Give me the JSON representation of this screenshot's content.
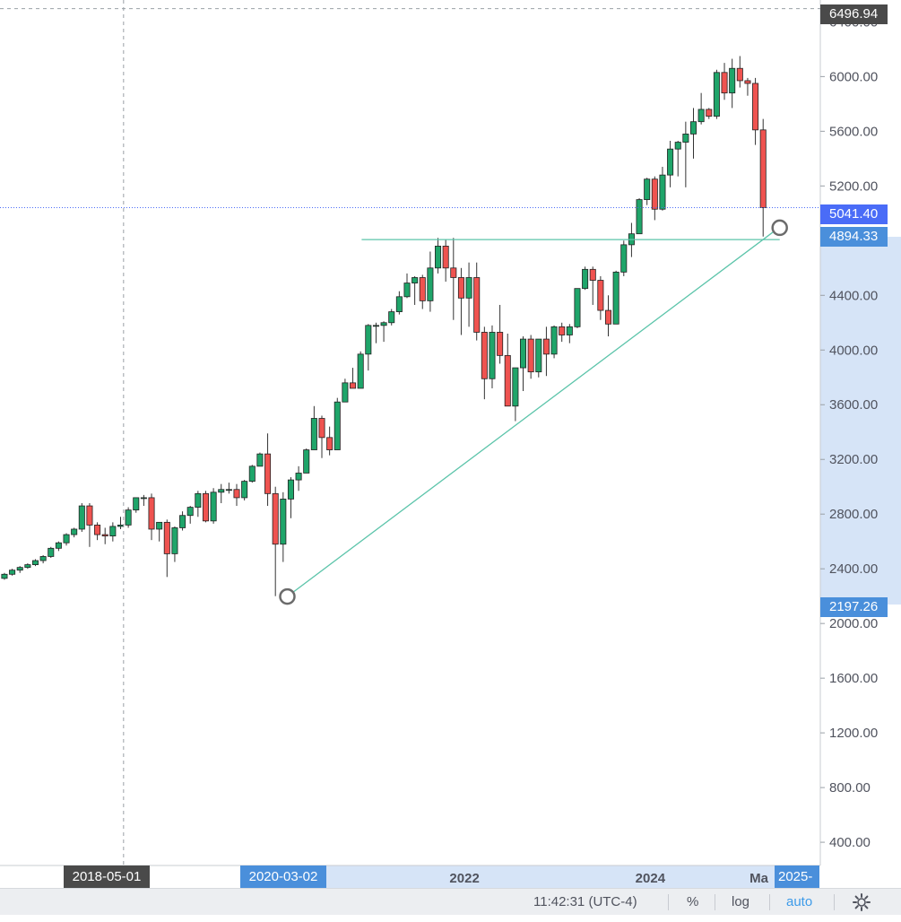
{
  "chart_data": {
    "type": "candlestick",
    "interval": "monthly",
    "y_axis": {
      "ticks": [
        "6400.00",
        "6000.00",
        "5600.00",
        "5200.00",
        "4800.00",
        "4400.00",
        "4000.00",
        "3600.00",
        "3200.00",
        "2800.00",
        "2400.00",
        "2000.00",
        "1600.00",
        "1200.00",
        "800.00",
        "400.00"
      ],
      "tick_values": [
        6400,
        6000,
        5600,
        5200,
        4800,
        4400,
        4000,
        3600,
        3200,
        2800,
        2400,
        2000,
        1600,
        1200,
        800,
        400
      ],
      "range": [
        230,
        6560
      ]
    },
    "x_axis": {
      "labels": [
        {
          "text": "2022",
          "year": 2022.0
        },
        {
          "text": "2024",
          "year": 2024.0
        },
        {
          "text": "Ma",
          "year": 2025.17
        }
      ],
      "range_years": [
        2017.0,
        2025.83
      ]
    },
    "price_labels": {
      "crosshair_price": "6496.94",
      "current_price": "5041.40",
      "drawing_end_price": "4894.33",
      "drawing_start_price": "2197.26"
    },
    "date_labels": {
      "crosshair_date": "2018-05-01",
      "drawing_start_date": "2020-03-02",
      "drawing_end_date": "2025-"
    },
    "crosshair": {
      "year": 2018.33,
      "price": 6496.94
    },
    "current_price_value": 5041.4,
    "drawings": {
      "trendline": {
        "start": {
          "year": 2020.17,
          "price": 2197.26
        },
        "end": {
          "year": 2025.47,
          "price": 4894.33
        }
      },
      "horizontal_segment": {
        "start_year": 2020.97,
        "end_year": 2025.47,
        "price": 4808
      }
    },
    "start_year": 2017.0,
    "candles": [
      [
        2300,
        2340,
        2280,
        2330
      ],
      [
        2330,
        2370,
        2320,
        2360
      ],
      [
        2360,
        2400,
        2350,
        2390
      ],
      [
        2390,
        2420,
        2370,
        2410
      ],
      [
        2410,
        2440,
        2400,
        2430
      ],
      [
        2430,
        2470,
        2420,
        2460
      ],
      [
        2460,
        2500,
        2440,
        2490
      ],
      [
        2490,
        2560,
        2480,
        2550
      ],
      [
        2550,
        2600,
        2530,
        2590
      ],
      [
        2590,
        2660,
        2570,
        2650
      ],
      [
        2650,
        2700,
        2630,
        2690
      ],
      [
        2690,
        2880,
        2670,
        2860
      ],
      [
        2860,
        2880,
        2560,
        2720
      ],
      [
        2720,
        2740,
        2610,
        2650
      ],
      [
        2650,
        2700,
        2580,
        2640
      ],
      [
        2640,
        2740,
        2600,
        2710
      ],
      [
        2710,
        2780,
        2690,
        2720
      ],
      [
        2720,
        2850,
        2700,
        2830
      ],
      [
        2830,
        2920,
        2810,
        2920
      ],
      [
        2920,
        2940,
        2860,
        2920
      ],
      [
        2920,
        2950,
        2610,
        2690
      ],
      [
        2690,
        2740,
        2600,
        2740
      ],
      [
        2740,
        2760,
        2340,
        2510
      ],
      [
        2510,
        2710,
        2450,
        2700
      ],
      [
        2700,
        2820,
        2680,
        2790
      ],
      [
        2790,
        2860,
        2730,
        2850
      ],
      [
        2850,
        2970,
        2780,
        2950
      ],
      [
        2950,
        2970,
        2740,
        2750
      ],
      [
        2750,
        2990,
        2730,
        2960
      ],
      [
        2960,
        3020,
        2880,
        2980
      ],
      [
        2980,
        3030,
        2950,
        2980
      ],
      [
        2980,
        3020,
        2860,
        2920
      ],
      [
        2920,
        3050,
        2900,
        3040
      ],
      [
        3040,
        3160,
        3030,
        3150
      ],
      [
        3150,
        3250,
        3150,
        3240
      ],
      [
        3240,
        3390,
        2860,
        2950
      ],
      [
        2950,
        3000,
        2200,
        2580
      ],
      [
        2580,
        2960,
        2450,
        2910
      ],
      [
        2910,
        3070,
        2770,
        3050
      ],
      [
        3050,
        3150,
        2970,
        3100
      ],
      [
        3100,
        3280,
        3100,
        3270
      ],
      [
        3270,
        3590,
        3270,
        3500
      ],
      [
        3500,
        3520,
        3210,
        3360
      ],
      [
        3360,
        3440,
        3230,
        3270
      ],
      [
        3270,
        3650,
        3270,
        3620
      ],
      [
        3620,
        3790,
        3620,
        3760
      ],
      [
        3760,
        3870,
        3720,
        3720
      ],
      [
        3720,
        3990,
        3720,
        3970
      ],
      [
        3970,
        4190,
        3850,
        4180
      ],
      [
        4180,
        4200,
        4050,
        4180
      ],
      [
        4180,
        4210,
        4060,
        4200
      ],
      [
        4200,
        4300,
        4180,
        4280
      ],
      [
        4280,
        4430,
        4260,
        4390
      ],
      [
        4390,
        4560,
        4380,
        4490
      ],
      [
        4490,
        4540,
        4330,
        4530
      ],
      [
        4530,
        4550,
        4300,
        4360
      ],
      [
        4360,
        4720,
        4280,
        4600
      ],
      [
        4600,
        4820,
        4560,
        4760
      ],
      [
        4760,
        4810,
        4500,
        4600
      ],
      [
        4600,
        4820,
        4220,
        4530
      ],
      [
        4530,
        4600,
        4110,
        4380
      ],
      [
        4380,
        4640,
        4170,
        4530
      ],
      [
        4530,
        4640,
        4070,
        4130
      ],
      [
        4130,
        4170,
        3640,
        3790
      ],
      [
        3790,
        4180,
        3720,
        4130
      ],
      [
        4130,
        4330,
        3900,
        3960
      ],
      [
        3960,
        4120,
        3590,
        3590
      ],
      [
        3590,
        3810,
        3480,
        3870
      ],
      [
        3870,
        4100,
        3700,
        4080
      ],
      [
        4080,
        4110,
        3790,
        3840
      ],
      [
        3840,
        4080,
        3800,
        4080
      ],
      [
        4080,
        4170,
        3810,
        3970
      ],
      [
        3970,
        4180,
        3940,
        4170
      ],
      [
        4170,
        4200,
        4060,
        4110
      ],
      [
        4110,
        4190,
        4050,
        4170
      ],
      [
        4170,
        4450,
        4160,
        4450
      ],
      [
        4450,
        4610,
        4440,
        4590
      ],
      [
        4590,
        4610,
        4330,
        4510
      ],
      [
        4510,
        4540,
        4220,
        4290
      ],
      [
        4290,
        4400,
        4100,
        4190
      ],
      [
        4190,
        4580,
        4190,
        4570
      ],
      [
        4570,
        4800,
        4540,
        4770
      ],
      [
        4770,
        4930,
        4680,
        4850
      ],
      [
        4850,
        5110,
        4850,
        5100
      ],
      [
        5100,
        5260,
        5060,
        5250
      ],
      [
        5250,
        5270,
        4950,
        5030
      ],
      [
        5030,
        5340,
        5020,
        5280
      ],
      [
        5280,
        5530,
        5190,
        5470
      ],
      [
        5470,
        5530,
        5270,
        5520
      ],
      [
        5520,
        5670,
        5190,
        5580
      ],
      [
        5580,
        5770,
        5400,
        5670
      ],
      [
        5670,
        5880,
        5650,
        5760
      ],
      [
        5760,
        5770,
        5690,
        5710
      ],
      [
        5710,
        6050,
        5690,
        6030
      ],
      [
        6030,
        6100,
        5830,
        5880
      ],
      [
        5880,
        6130,
        5770,
        6060
      ],
      [
        6060,
        6150,
        5920,
        5970
      ],
      [
        5970,
        5990,
        5860,
        5950
      ],
      [
        5950,
        5990,
        5500,
        5610
      ],
      [
        5610,
        5690,
        4830,
        5041.4
      ]
    ]
  },
  "bottom_bar": {
    "time": "11:42:31 (UTC-4)",
    "percent": "%",
    "log": "log",
    "auto": "auto",
    "settings_icon": "gear-icon"
  },
  "colors": {
    "up": "#26a69a",
    "up_fill": "#1fa56a",
    "down": "#ef5350",
    "trendline": "#5cc4aa",
    "current_price": "#4a6cf7",
    "label_dark": "#4a4a4a",
    "label_blue": "#4a8fdb",
    "scale_highlight": "#d6e4f7"
  }
}
